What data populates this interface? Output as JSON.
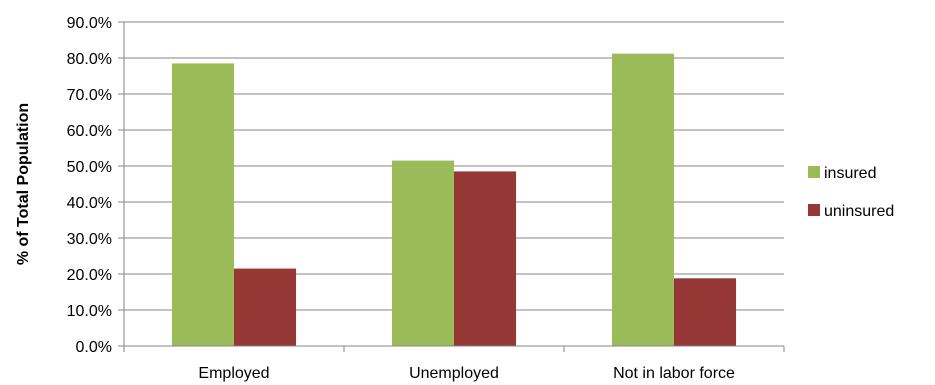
{
  "chart_data": {
    "type": "bar",
    "categories": [
      "Employed",
      "Unemployed",
      "Not in labor force"
    ],
    "series": [
      {
        "name": "insured",
        "values": [
          78.5,
          51.5,
          81.2
        ],
        "color": "#9BBB59"
      },
      {
        "name": "uninsured",
        "values": [
          21.5,
          48.5,
          18.8
        ],
        "color": "#953735"
      }
    ],
    "xlabel": "",
    "ylabel": "% of Total Population",
    "ylim": [
      0,
      90
    ],
    "yticks": [
      "0.0%",
      "10.0%",
      "20.0%",
      "30.0%",
      "40.0%",
      "50.0%",
      "60.0%",
      "70.0%",
      "80.0%",
      "90.0%"
    ],
    "grid": true,
    "legend": "right"
  }
}
